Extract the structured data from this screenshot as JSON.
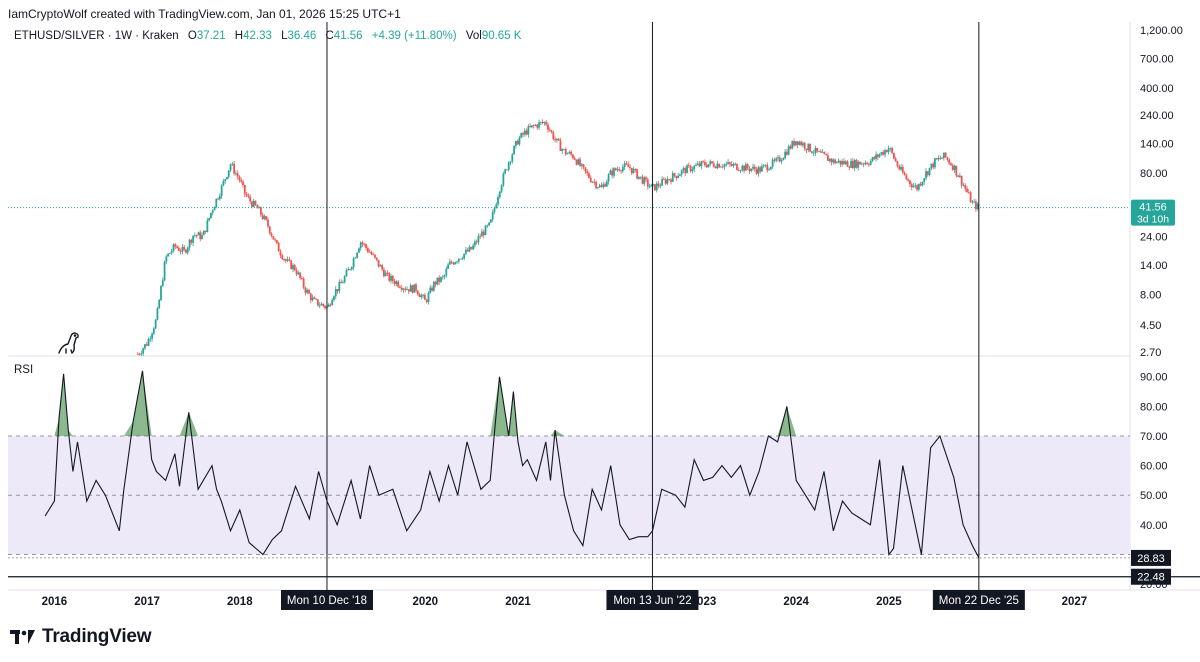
{
  "header": {
    "author_line": "IamCryptoWolf created with TradingView.com, Jan 01, 2026 15:25 UTC+1",
    "symbol": "ETHUSD/SILVER · 1W · Kraken",
    "o_label": "O",
    "o_value": "37.21",
    "h_label": "H",
    "h_value": "42.33",
    "l_label": "L",
    "l_value": "36.46",
    "c_label": "C",
    "c_value": "41.56",
    "change": "+4.39 (+11.80%)",
    "vol_label": "Vol",
    "vol_value": "90.65 K"
  },
  "colors": {
    "up": "#26a69a",
    "down": "#ef5350",
    "rsi_band": "#ede9f8",
    "rsi_fill_high": "#2e7d32",
    "price_tag": "#26a69a",
    "crosshair_tag": "#131722"
  },
  "footer": {
    "brand": "TradingView",
    "logo_icon": "tradingview-logo-icon"
  },
  "chart_data": [
    {
      "type": "candlestick",
      "title": "ETHUSD/SILVER · 1W · Kraken",
      "scale": "log",
      "y_ticks": [
        "1,200.00",
        "700.00",
        "400.00",
        "240.00",
        "140.00",
        "80.00",
        "24.00",
        "14.00",
        "8.00",
        "4.50",
        "2.70"
      ],
      "y_tick_values": [
        1200,
        700,
        400,
        240,
        140,
        80,
        24,
        14,
        8,
        4.5,
        2.7
      ],
      "ylim": [
        2.5,
        1400
      ],
      "last_price": "41.56",
      "last_price_value": 41.56,
      "countdown": "3d 10h",
      "x": [
        2016.9,
        2017.0,
        2017.1,
        2017.15,
        2017.2,
        2017.3,
        2017.4,
        2017.5,
        2017.6,
        2017.7,
        2017.8,
        2017.9,
        2018.0,
        2018.05,
        2018.1,
        2018.2,
        2018.3,
        2018.4,
        2018.5,
        2018.6,
        2018.7,
        2018.8,
        2018.9,
        2018.95,
        2019.0,
        2019.1,
        2019.2,
        2019.3,
        2019.4,
        2019.5,
        2019.6,
        2019.7,
        2019.8,
        2019.9,
        2020.0,
        2020.1,
        2020.2,
        2020.25,
        2020.3,
        2020.4,
        2020.5,
        2020.6,
        2020.7,
        2020.8,
        2020.9,
        2021.0,
        2021.1,
        2021.2,
        2021.3,
        2021.4,
        2021.5,
        2021.6,
        2021.7,
        2021.8,
        2021.9,
        2022.0,
        2022.1,
        2022.2,
        2022.3,
        2022.45,
        2022.6,
        2022.8,
        2023.0,
        2023.2,
        2023.4,
        2023.6,
        2023.8,
        2024.0,
        2024.2,
        2024.4,
        2024.6,
        2024.8,
        2025.0,
        2025.1,
        2025.2,
        2025.3,
        2025.4,
        2025.5,
        2025.6,
        2025.7,
        2025.8,
        2025.9,
        2025.97
      ],
      "close": [
        2.6,
        3.2,
        5,
        9,
        16,
        20,
        18,
        25,
        24,
        40,
        60,
        95,
        70,
        55,
        48,
        40,
        30,
        20,
        15,
        13,
        9,
        7,
        6.5,
        6.2,
        8,
        10,
        14,
        22,
        18,
        14,
        11,
        10,
        9,
        9,
        7,
        10,
        11,
        14,
        15,
        17,
        19,
        25,
        30,
        60,
        100,
        150,
        180,
        200,
        210,
        150,
        120,
        110,
        85,
        70,
        60,
        80,
        90,
        90,
        75,
        60,
        70,
        85,
        95,
        95,
        90,
        85,
        100,
        150,
        120,
        100,
        95,
        100,
        130,
        90,
        70,
        60,
        80,
        100,
        110,
        90,
        65,
        45,
        41.56
      ]
    },
    {
      "type": "line",
      "title": "RSI",
      "y_ticks": [
        "90.00",
        "80.00",
        "70.00",
        "60.00",
        "50.00",
        "40.00",
        "20.00"
      ],
      "y_tick_values": [
        90,
        80,
        70,
        60,
        50,
        40,
        20
      ],
      "ylim": [
        18,
        97
      ],
      "overbought": 70,
      "middle": 50,
      "oversold": 30,
      "current_value": "28.83",
      "current_value_num": 28.83,
      "reference_label": "22.48",
      "reference_value": 22.48,
      "x": [
        2015.9,
        2016.0,
        2016.05,
        2016.1,
        2016.15,
        2016.2,
        2016.25,
        2016.35,
        2016.45,
        2016.55,
        2016.7,
        2016.75,
        2016.85,
        2016.95,
        2017.05,
        2017.1,
        2017.2,
        2017.3,
        2017.35,
        2017.45,
        2017.55,
        2017.7,
        2017.75,
        2017.8,
        2017.9,
        2018.0,
        2018.1,
        2018.25,
        2018.35,
        2018.45,
        2018.6,
        2018.75,
        2018.85,
        2018.94,
        2019.05,
        2019.2,
        2019.3,
        2019.4,
        2019.5,
        2019.65,
        2019.8,
        2019.95,
        2020.05,
        2020.15,
        2020.25,
        2020.35,
        2020.45,
        2020.6,
        2020.7,
        2020.8,
        2020.9,
        2020.95,
        2021.0,
        2021.05,
        2021.1,
        2021.2,
        2021.3,
        2021.35,
        2021.4,
        2021.5,
        2021.6,
        2021.7,
        2021.8,
        2021.9,
        2022.0,
        2022.1,
        2022.2,
        2022.3,
        2022.4,
        2022.45,
        2022.55,
        2022.7,
        2022.8,
        2022.9,
        2023.0,
        2023.1,
        2023.2,
        2023.3,
        2023.4,
        2023.5,
        2023.6,
        2023.7,
        2023.8,
        2023.9,
        2024.0,
        2024.1,
        2024.2,
        2024.3,
        2024.4,
        2024.5,
        2024.6,
        2024.7,
        2024.8,
        2024.9,
        2025.0,
        2025.05,
        2025.15,
        2025.25,
        2025.35,
        2025.45,
        2025.55,
        2025.7,
        2025.8,
        2025.9,
        2025.97
      ],
      "values": [
        43,
        48,
        76,
        91,
        72,
        58,
        68,
        48,
        55,
        50,
        38,
        52,
        75,
        92,
        62,
        58,
        55,
        64,
        53,
        78,
        52,
        60,
        52,
        48,
        38,
        45,
        34,
        30,
        35,
        38,
        53,
        42,
        58,
        48,
        40,
        55,
        42,
        60,
        50,
        52,
        38,
        45,
        58,
        48,
        60,
        50,
        68,
        52,
        55,
        90,
        70,
        85,
        68,
        60,
        62,
        55,
        68,
        55,
        72,
        50,
        38,
        33,
        52,
        45,
        60,
        40,
        35,
        36,
        36,
        38,
        52,
        50,
        46,
        62,
        55,
        56,
        60,
        56,
        60,
        50,
        58,
        70,
        68,
        80,
        55,
        50,
        45,
        58,
        38,
        48,
        44,
        42,
        40,
        62,
        30,
        32,
        60,
        45,
        30,
        66,
        70,
        56,
        40,
        33,
        28.83
      ]
    }
  ],
  "x_axis": {
    "labels": [
      "2016",
      "2017",
      "2018",
      "2020",
      "2021",
      "2023",
      "2024",
      "2025",
      "2027"
    ],
    "label_values": [
      2016,
      2017,
      2018,
      2020,
      2021,
      2023,
      2024,
      2025,
      2027
    ],
    "xlim": [
      2015.5,
      2027.6
    ],
    "markers": [
      {
        "label": "Mon 10 Dec '18",
        "value": 2018.94
      },
      {
        "label": "Mon 13 Jun '22",
        "value": 2022.45
      },
      {
        "label": "Mon 22 Dec '25",
        "value": 2025.97
      }
    ]
  }
}
